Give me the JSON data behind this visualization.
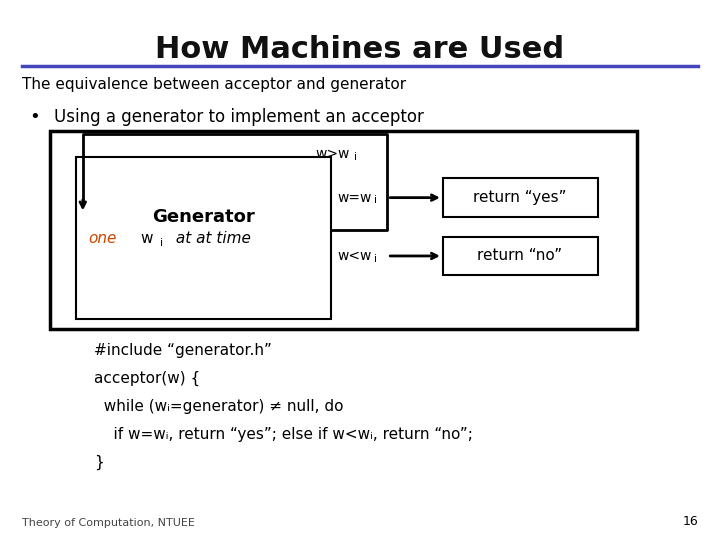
{
  "title": "How Machines are Used",
  "subtitle": "The equivalence between acceptor and generator",
  "bullet": "Using a generator to implement an acceptor",
  "title_line_color": "#4444BB",
  "bg_color": "#FFFFFF",
  "text_color": "#000000",
  "footer": "Theory of Computation, NTUEE",
  "page_num": "16",
  "return_yes": "return “yes”",
  "return_no": "return “no”",
  "code_lines": [
    "#include “generator.h”",
    "acceptor(w) {",
    "  while (wᵢ=generator) ≠ null, do",
    "    if w=wᵢ, return “yes”; else if w<wᵢ, return “no”;",
    "}"
  ]
}
